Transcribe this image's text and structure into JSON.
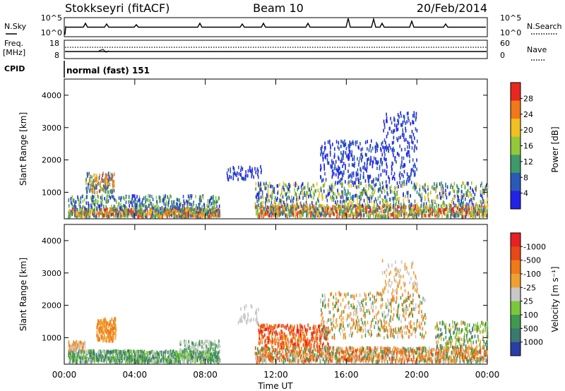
{
  "header": {
    "station": "Stokkseyri (fitACF)",
    "beam": "Beam 10",
    "date": "20/Feb/2014"
  },
  "top_panels": {
    "nsky_label": "N.Sky",
    "nsky_ticks": [
      "10^5",
      "10^0"
    ],
    "nsearch_label": "N.Search",
    "nsearch_ticks": [
      "10^5",
      "10^0"
    ],
    "freq_label_1": "Freq.",
    "freq_label_2": "[MHz]",
    "freq_ticks": [
      "18",
      "8"
    ],
    "nave_label": "Nave",
    "nave_ticks": [
      "60",
      "0"
    ],
    "cpid_label": "CPID",
    "cpid_value": "normal (fast) 151"
  },
  "chart_data": [
    {
      "type": "heatmap",
      "panel": "power",
      "ylabel": "Slant Range [km]",
      "xlabel": "",
      "ylim": [
        180,
        4500
      ],
      "y_ticks": [
        1000,
        2000,
        3000,
        4000
      ],
      "colorbar_label": "Power [dB]",
      "colorbar_ticks": [
        "4",
        "8",
        "12",
        "16",
        "20",
        "24",
        "28"
      ],
      "colorbar_colors": [
        "#2222e8",
        "#2a5ab8",
        "#3e9a68",
        "#92c83a",
        "#f0c020",
        "#f07818",
        "#e82820"
      ]
    },
    {
      "type": "heatmap",
      "panel": "velocity",
      "ylabel": "Slant Range [km]",
      "xlabel": "Time UT",
      "ylim": [
        180,
        4500
      ],
      "y_ticks": [
        1000,
        2000,
        3000,
        4000
      ],
      "x_ticks": [
        "00:00",
        "04:00",
        "08:00",
        "12:00",
        "16:00",
        "20:00",
        "00:00"
      ],
      "colorbar_label": "Velocity [m s⁻¹]",
      "colorbar_ticks": [
        "1000",
        "500",
        "100",
        "25",
        "-25",
        "-100",
        "-500",
        "-1000"
      ],
      "colorbar_colors": [
        "#2a3ea8",
        "#3a7a70",
        "#3e9a50",
        "#7ac83a",
        "#c8c8c8",
        "#f0a030",
        "#f07a18",
        "#e84818",
        "#e82020"
      ]
    }
  ]
}
